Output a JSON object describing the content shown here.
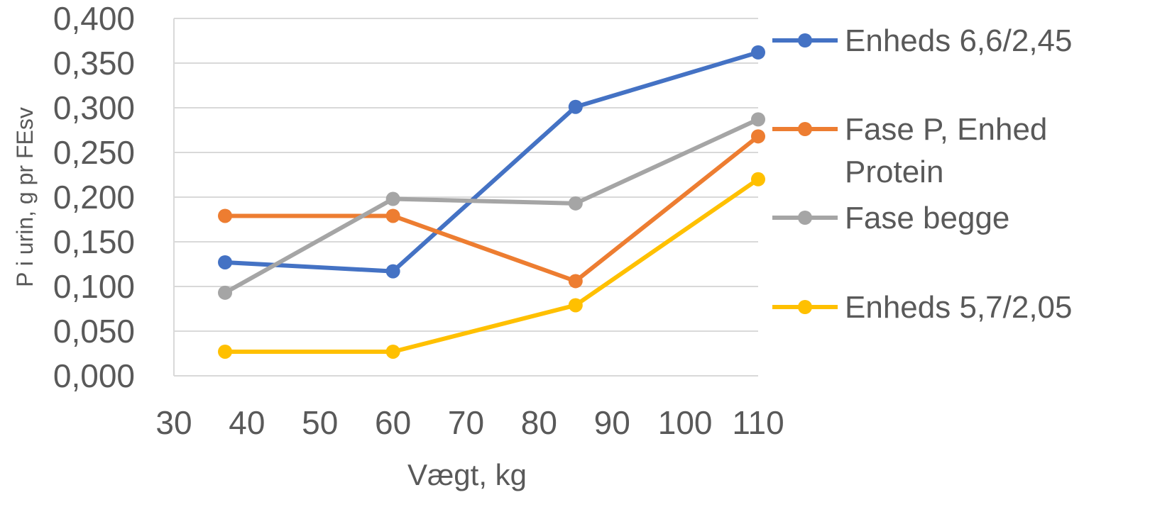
{
  "chart_data": {
    "type": "line",
    "xlabel": "Vægt, kg",
    "ylabel": "P i urin, g pr FEsv",
    "xlim": [
      30,
      110
    ],
    "ylim": [
      0,
      0.4
    ],
    "x_ticks": [
      "30",
      "40",
      "50",
      "60",
      "70",
      "80",
      "90",
      "100",
      "110"
    ],
    "y_ticks": [
      "0,000",
      "0,050",
      "0,100",
      "0,150",
      "0,200",
      "0,250",
      "0,300",
      "0,350",
      "0,400"
    ],
    "grid": true,
    "legend_position": "right",
    "series": [
      {
        "name": "Enheds 6,6/2,45",
        "color": "#4472C4",
        "x": [
          37,
          60,
          85,
          110
        ],
        "y": [
          0.127,
          0.117,
          0.301,
          0.362
        ]
      },
      {
        "name": "Fase P, Enhed Protein",
        "color": "#ED7D31",
        "x": [
          37,
          60,
          85,
          110
        ],
        "y": [
          0.179,
          0.179,
          0.106,
          0.268
        ]
      },
      {
        "name": "Fase begge",
        "color": "#A5A5A5",
        "x": [
          37,
          60,
          85,
          110
        ],
        "y": [
          0.093,
          0.198,
          0.193,
          0.287
        ]
      },
      {
        "name": "Enheds 5,7/2,05",
        "color": "#FFC000",
        "x": [
          37,
          60,
          85,
          110
        ],
        "y": [
          0.027,
          0.027,
          0.079,
          0.22
        ]
      }
    ]
  }
}
